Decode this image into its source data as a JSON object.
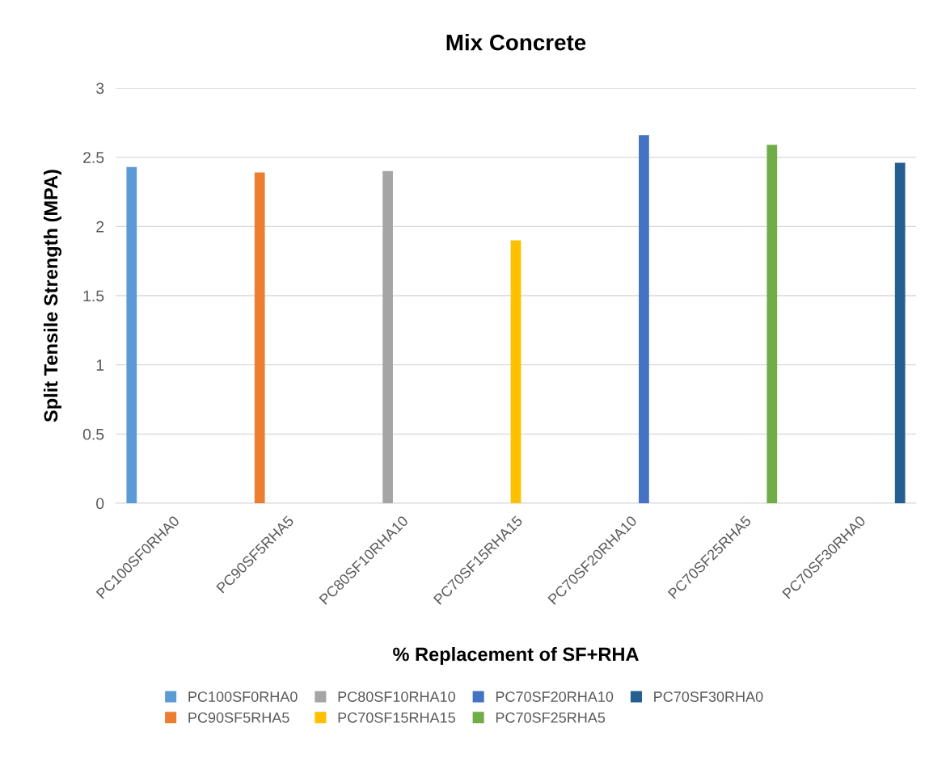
{
  "chart_data": {
    "type": "bar",
    "title": "Mix Concrete",
    "xlabel": "% Replacement of SF+RHA",
    "ylabel": "Split Tensile Strength (MPA)",
    "categories": [
      "PC100SF0RHA0",
      "PC90SF5RHA5",
      "PC80SF10RHA10",
      "PC70SF15RHA15",
      "PC70SF20RHA10",
      "PC70SF25RHA5",
      "PC70SF30RHA0"
    ],
    "series": [
      {
        "name": "PC100SF0RHA0",
        "color": "#5b9bd5",
        "values": [
          2.43,
          null,
          null,
          null,
          null,
          null,
          null
        ]
      },
      {
        "name": "PC90SF5RHA5",
        "color": "#ed7d31",
        "values": [
          null,
          2.39,
          null,
          null,
          null,
          null,
          null
        ]
      },
      {
        "name": "PC80SF10RHA10",
        "color": "#a5a5a5",
        "values": [
          null,
          null,
          2.4,
          null,
          null,
          null,
          null
        ]
      },
      {
        "name": "PC70SF15RHA15",
        "color": "#ffc000",
        "values": [
          null,
          null,
          null,
          1.9,
          null,
          null,
          null
        ]
      },
      {
        "name": "PC70SF20RHA10",
        "color": "#4472c4",
        "values": [
          null,
          null,
          null,
          null,
          2.66,
          null,
          null
        ]
      },
      {
        "name": "PC70SF25RHA5",
        "color": "#70ad47",
        "values": [
          null,
          null,
          null,
          null,
          null,
          2.59,
          null
        ]
      },
      {
        "name": "PC70SF30RHA0",
        "color": "#255e91",
        "values": [
          null,
          null,
          null,
          null,
          null,
          null,
          2.46
        ]
      }
    ],
    "ylim": [
      0,
      3
    ],
    "yticks": [
      0,
      0.5,
      1,
      1.5,
      2,
      2.5,
      3
    ],
    "grid": "y",
    "legend": "bottom"
  }
}
